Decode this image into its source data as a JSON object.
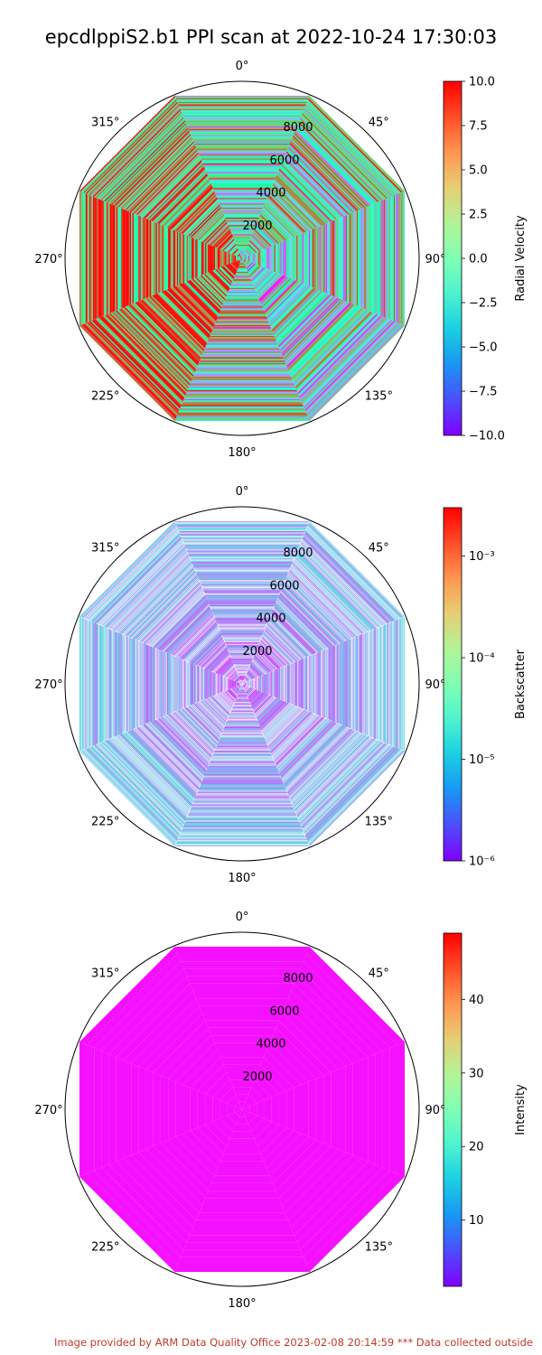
{
  "figure": {
    "title": "epcdlppiS2.b1 PPI scan at 2022-10-24 17:30:03",
    "footer": "Image provided by ARM Data Quality Office 2023-02-08 20:14:59    *** Data collected outside"
  },
  "chart_data": [
    {
      "type": "heatmap",
      "projection": "polar",
      "theta_zero": "N",
      "theta_direction": "clockwise",
      "theta_ticks": [
        "0°",
        "45°",
        "90°",
        "135°",
        "180°",
        "225°",
        "270°",
        "315°"
      ],
      "r_ticks": [
        "2000",
        "4000",
        "6000",
        "8000"
      ],
      "rlim": [
        0,
        10000
      ],
      "colorbar": {
        "label": "Radial Velocity",
        "cmap": "rainbow",
        "scale": "linear",
        "range": [
          -10,
          10
        ],
        "ticks": [
          "10.0",
          "7.5",
          "5.0",
          "2.5",
          "0.0",
          "−2.5",
          "−5.0",
          "−7.5",
          "−10.0"
        ]
      }
    },
    {
      "type": "heatmap",
      "projection": "polar",
      "theta_zero": "N",
      "theta_direction": "clockwise",
      "theta_ticks": [
        "0°",
        "45°",
        "90°",
        "135°",
        "180°",
        "225°",
        "270°",
        "315°"
      ],
      "r_ticks": [
        "2000",
        "4000",
        "6000",
        "8000"
      ],
      "rlim": [
        0,
        10000
      ],
      "colorbar": {
        "label": "Backscatter",
        "cmap": "rainbow",
        "scale": "log",
        "range": [
          1e-06,
          0.003
        ],
        "ticks": [
          "10⁻³",
          "10⁻⁴",
          "10⁻⁵",
          "10⁻⁶"
        ]
      }
    },
    {
      "type": "heatmap",
      "projection": "polar",
      "theta_zero": "N",
      "theta_direction": "clockwise",
      "theta_ticks": [
        "0°",
        "45°",
        "90°",
        "135°",
        "180°",
        "225°",
        "270°",
        "315°"
      ],
      "r_ticks": [
        "2000",
        "4000",
        "6000",
        "8000"
      ],
      "rlim": [
        0,
        10000
      ],
      "colorbar": {
        "label": "Intensity",
        "cmap": "rainbow",
        "scale": "linear",
        "range": [
          1,
          49
        ],
        "ticks": [
          "40",
          "30",
          "20",
          "10"
        ]
      }
    }
  ]
}
